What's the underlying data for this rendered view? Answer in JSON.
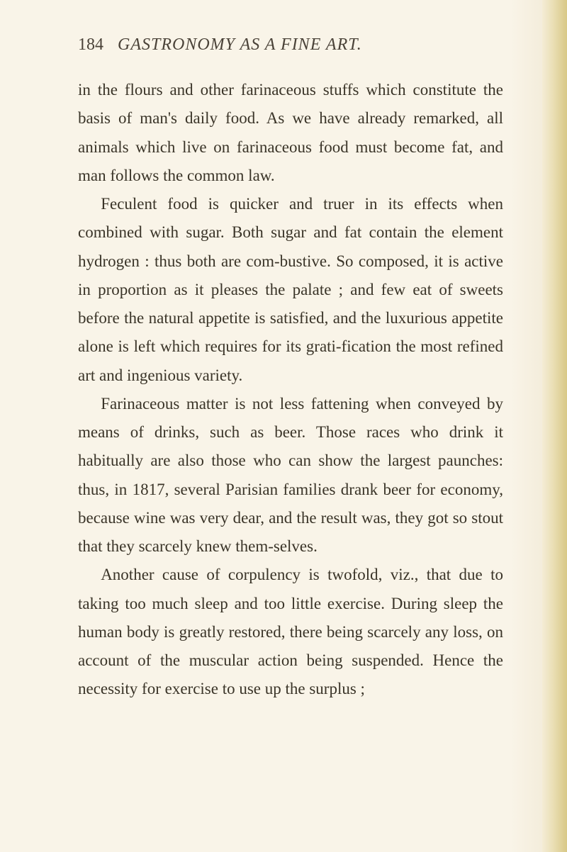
{
  "page": {
    "number": "184",
    "title": "GASTRONOMY AS A FINE ART.",
    "bgColor": "#f9f4e8",
    "textColor": "#3a3428",
    "headerColor": "#4a4238"
  },
  "paragraphs": [
    {
      "text": "in the flours and other farinaceous stuffs which constitute the basis of man's daily food. As we have already remarked, all animals which live on farinaceous food must become fat, and man follows the common law.",
      "indent": false
    },
    {
      "text": "Feculent food is quicker and truer in its effects when combined with sugar. Both sugar and fat contain the element hydrogen : thus both are com-bustive. So composed, it is active in proportion as it pleases the palate ; and few eat of sweets before the natural appetite is satisfied, and the luxurious appetite alone is left which requires for its grati-fication the most refined art and ingenious variety.",
      "indent": true
    },
    {
      "text": "Farinaceous matter is not less fattening when conveyed by means of drinks, such as beer. Those races who drink it habitually are also those who can show the largest paunches: thus, in 1817, several Parisian families drank beer for economy, because wine was very dear, and the result was, they got so stout that they scarcely knew them-selves.",
      "indent": true
    },
    {
      "text": "Another cause of corpulency is twofold, viz., that due to taking too much sleep and too little exercise. During sleep the human body is greatly restored, there being scarcely any loss, on account of the muscular action being suspended. Hence the necessity for exercise to use up the surplus ;",
      "indent": true
    }
  ]
}
